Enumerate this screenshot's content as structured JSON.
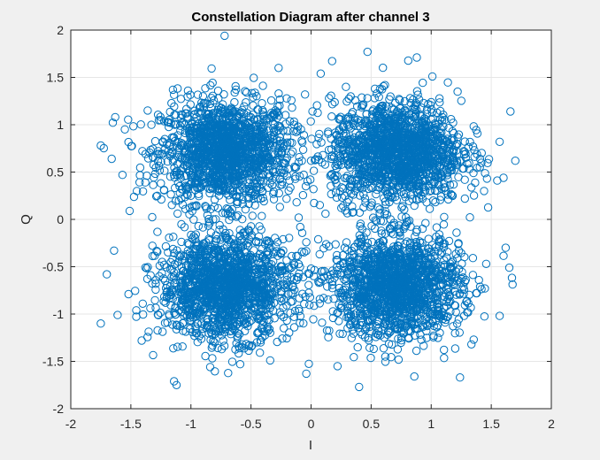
{
  "chart_data": {
    "type": "scatter",
    "title": "Constellation Diagram after channel 3",
    "xlabel": "I",
    "ylabel": "Q",
    "xlim": [
      -2,
      2
    ],
    "ylim": [
      -2,
      2
    ],
    "xticks": [
      -2,
      -1.5,
      -1,
      -0.5,
      0,
      0.5,
      1,
      1.5,
      2
    ],
    "yticks": [
      -2,
      -1.5,
      -1,
      -0.5,
      0,
      0.5,
      1,
      1.5,
      2
    ],
    "xtick_labels": [
      "-2",
      "-1.5",
      "-1",
      "-0.5",
      "0",
      "0.5",
      "1",
      "1.5",
      "2"
    ],
    "ytick_labels": [
      "-2",
      "-1.5",
      "-1",
      "-0.5",
      "0",
      "0.5",
      "1",
      "1.5",
      "2"
    ],
    "grid": true,
    "marker": "open-circle",
    "series": [
      {
        "cluster_centers": [
          [
            -0.71,
            0.71
          ],
          [
            0.71,
            0.71
          ],
          [
            -0.71,
            -0.71
          ],
          [
            0.71,
            -0.71
          ]
        ],
        "color": "#0072bd",
        "points": [
          [
            -0.72,
            1.94
          ],
          [
            0.47,
            1.77
          ],
          [
            0.88,
            1.71
          ],
          [
            -1.15,
            1.37
          ],
          [
            -1.36,
            1.15
          ],
          [
            -1.63,
            1.08
          ],
          [
            -1.55,
            0.95
          ],
          [
            -1.75,
            0.78
          ],
          [
            -1.66,
            0.64
          ],
          [
            -1.57,
            0.47
          ],
          [
            -1.45,
            0.3
          ],
          [
            -1.28,
            0.25
          ],
          [
            -1.51,
            0.09
          ],
          [
            1.66,
            1.14
          ],
          [
            1.57,
            0.82
          ],
          [
            1.7,
            0.62
          ],
          [
            1.55,
            0.41
          ],
          [
            1.44,
            0.3
          ],
          [
            1.28,
            0.22
          ],
          [
            -1.64,
            -0.33
          ],
          [
            -1.7,
            -0.58
          ],
          [
            -1.52,
            -0.79
          ],
          [
            -1.61,
            -1.01
          ],
          [
            -1.75,
            -1.1
          ],
          [
            -1.41,
            -1.28
          ],
          [
            -1.14,
            -1.71
          ],
          [
            -1.12,
            -1.75
          ],
          [
            -0.84,
            -1.56
          ],
          [
            -0.59,
            -1.53
          ],
          [
            -0.34,
            -1.49
          ],
          [
            -0.04,
            -1.63
          ],
          [
            0.22,
            -1.55
          ],
          [
            0.4,
            -1.77
          ],
          [
            0.86,
            -1.66
          ],
          [
            1.24,
            -1.67
          ],
          [
            1.57,
            -1.02
          ],
          [
            1.65,
            -0.51
          ],
          [
            1.62,
            -0.3
          ],
          [
            -0.27,
            1.6
          ],
          [
            0.08,
            1.54
          ],
          [
            -0.05,
            1.32
          ],
          [
            0.29,
            1.4
          ],
          [
            1.22,
            1.35
          ],
          [
            1.01,
            1.51
          ],
          [
            0.02,
            0.32
          ],
          [
            -0.12,
            0.18
          ],
          [
            0.12,
            0.06
          ],
          [
            -0.09,
            -0.08
          ],
          [
            0.06,
            -0.21
          ],
          [
            -0.18,
            0.41
          ],
          [
            0.21,
            0.38
          ],
          [
            -0.25,
            -0.35
          ],
          [
            0.28,
            -0.3
          ],
          [
            0.0,
            0.62
          ],
          [
            0.0,
            -0.52
          ]
        ]
      }
    ]
  }
}
